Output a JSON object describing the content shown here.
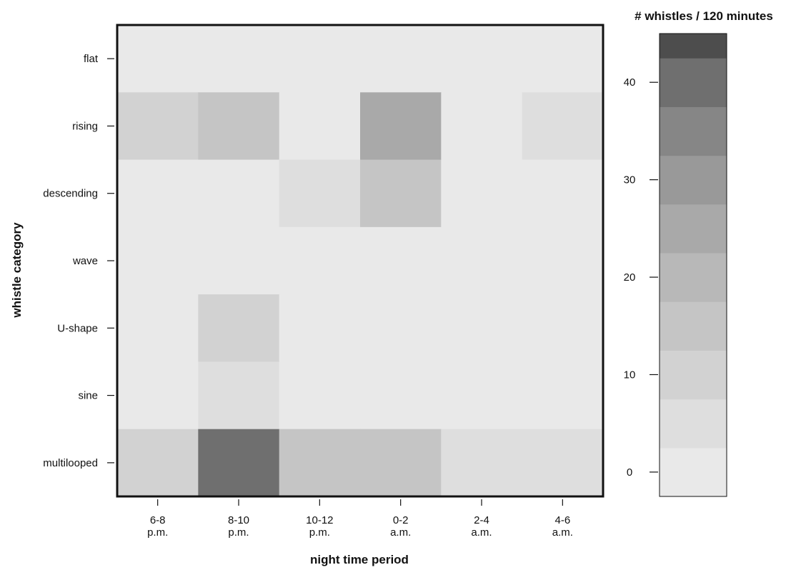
{
  "chart_data": {
    "type": "heatmap",
    "title": "",
    "xlabel": "night time period",
    "ylabel": "whistle category",
    "x_categories": [
      [
        "6-8",
        "p.m."
      ],
      [
        "8-10",
        "p.m."
      ],
      [
        "10-12",
        "p.m."
      ],
      [
        "0-2",
        "a.m."
      ],
      [
        "2-4",
        "a.m."
      ],
      [
        "4-6",
        "a.m."
      ]
    ],
    "y_categories": [
      "flat",
      "rising",
      "descending",
      "wave",
      "U-shape",
      "sine",
      "multilooped"
    ],
    "values": [
      [
        0,
        0,
        0,
        2,
        0,
        0
      ],
      [
        10,
        15,
        0,
        25,
        0,
        7
      ],
      [
        0,
        0,
        4,
        17,
        0,
        0
      ],
      [
        0,
        0,
        0,
        2,
        0,
        0
      ],
      [
        0,
        10,
        0,
        0,
        0,
        0
      ],
      [
        0,
        3,
        0,
        0,
        0,
        0
      ],
      [
        10,
        41,
        15,
        16,
        4,
        4
      ]
    ],
    "colorbar": {
      "title": "# whistles / 120 minutes",
      "min": -2.5,
      "max": 45,
      "ticks": [
        0,
        10,
        20,
        30,
        40
      ],
      "bin_edges": [
        -2.5,
        2.5,
        7.5,
        12.5,
        17.5,
        22.5,
        27.5,
        32.5,
        37.5,
        42.5,
        47.5
      ],
      "colors": [
        "#e9e9e9",
        "#dedede",
        "#d2d2d2",
        "#c5c5c5",
        "#b8b8b8",
        "#a9a9a9",
        "#999999",
        "#868686",
        "#6f6f6f",
        "#4d4d4d"
      ]
    },
    "grid": false
  }
}
